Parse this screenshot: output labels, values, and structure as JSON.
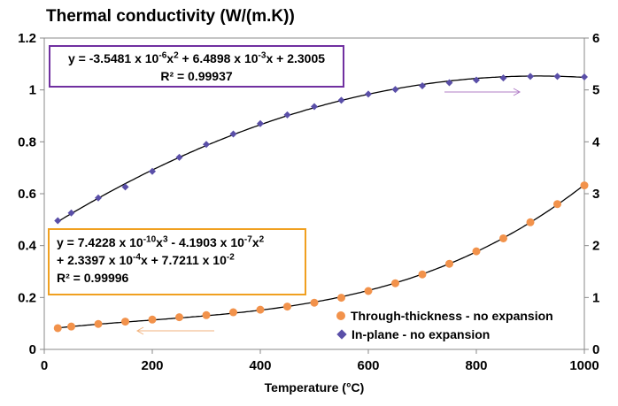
{
  "chart_data": {
    "type": "scatter",
    "title": "Thermal conductivity (W/(m.K))",
    "xlabel": "Temperature (°C)",
    "xlim": [
      0,
      1000
    ],
    "ylim_left": [
      0,
      1.2
    ],
    "ylim_right": [
      0,
      6
    ],
    "x_ticks": [
      "0",
      "200",
      "400",
      "600",
      "800",
      "1000"
    ],
    "y_ticks_left": [
      "0",
      "0.2",
      "0.4",
      "0.6",
      "0.8",
      "1",
      "1.2"
    ],
    "y_ticks_right": [
      "0",
      "1",
      "2",
      "3",
      "4",
      "5",
      "6"
    ],
    "grid": false,
    "legend_position": "bottom-right",
    "series": [
      {
        "name": "Through-thickness - no expansion",
        "axis": "left",
        "color": "#f2924b",
        "marker": "circle",
        "x": [
          25,
          50,
          100,
          150,
          200,
          250,
          300,
          350,
          400,
          450,
          500,
          550,
          600,
          650,
          700,
          750,
          800,
          850,
          900,
          950,
          1000
        ],
        "y": [
          0.082,
          0.088,
          0.098,
          0.107,
          0.115,
          0.124,
          0.132,
          0.143,
          0.153,
          0.165,
          0.18,
          0.199,
          0.225,
          0.255,
          0.289,
          0.33,
          0.378,
          0.428,
          0.49,
          0.56,
          0.632
        ],
        "fit_coeffs": [
          0.077211,
          0.00023397,
          -4.1903e-07,
          7.4228e-10
        ]
      },
      {
        "name": "In-plane - no expansion",
        "axis": "right",
        "color": "#5a4fa8",
        "marker": "diamond",
        "x": [
          25,
          50,
          100,
          150,
          200,
          250,
          300,
          350,
          400,
          450,
          500,
          550,
          600,
          650,
          700,
          750,
          800,
          850,
          900,
          950,
          1000
        ],
        "y": [
          2.48,
          2.63,
          2.92,
          3.13,
          3.43,
          3.7,
          3.95,
          4.15,
          4.35,
          4.52,
          4.68,
          4.8,
          4.92,
          5.01,
          5.08,
          5.14,
          5.19,
          5.23,
          5.26,
          5.26,
          5.25
        ],
        "fit_coeffs": [
          2.3005,
          0.0064898,
          -3.5481e-06
        ]
      }
    ],
    "annotations": {
      "inplane_eq_line1": "y = -3.5481 x 10",
      "inplane_eq_line1_exp1": "-6",
      "inplane_eq_line1_mid": "x",
      "inplane_eq_line1_exp2": "2",
      "inplane_eq_line1_mid2": " + 6.4898 x 10",
      "inplane_eq_line1_exp3": "-3",
      "inplane_eq_line1_end": "x + 2.3005",
      "inplane_r2": "R² = 0.99937",
      "through_l1_a": "y = 7.4228 x 10",
      "through_l1_e1": "-10",
      "through_l1_b": "x",
      "through_l1_e2": "3",
      "through_l1_c": " - 4.1903 x 10",
      "through_l1_e3": "-7",
      "through_l1_d": "x",
      "through_l1_e4": "2",
      "through_l2_a": "+ 2.3397 x 10",
      "through_l2_e1": "-4",
      "through_l2_b": "x + 7.7211 x 10",
      "through_l2_e2": "-2",
      "through_r2": "R² = 0.99996"
    }
  }
}
